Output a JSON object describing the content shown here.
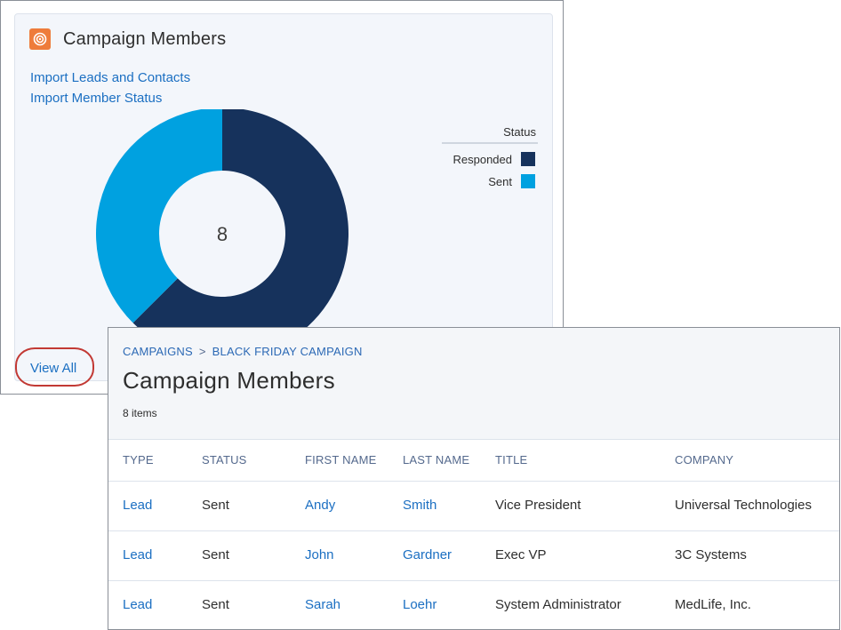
{
  "card": {
    "title": "Campaign Members",
    "icon": "target-icon",
    "links": [
      "Import Leads and Contacts",
      "Import Member Status"
    ],
    "view_all": "View All"
  },
  "chart_data": {
    "type": "pie",
    "center_label": "8",
    "legend_title": "Status",
    "legend_position": "right",
    "series": [
      {
        "name": "Responded",
        "value": 5,
        "color": "#16325c"
      },
      {
        "name": "Sent",
        "value": 3,
        "color": "#00a1e0"
      }
    ]
  },
  "panel": {
    "breadcrumb": [
      "CAMPAIGNS",
      "BLACK FRIDAY CAMPAIGN"
    ],
    "breadcrumb_sep": ">",
    "title": "Campaign Members",
    "count": "8 items",
    "columns": [
      "TYPE",
      "STATUS",
      "FIRST NAME",
      "LAST NAME",
      "TITLE",
      "COMPANY"
    ],
    "rows": [
      [
        "Lead",
        "Sent",
        "Andy",
        "Smith",
        "Vice President",
        "Universal Technologies"
      ],
      [
        "Lead",
        "Sent",
        "John",
        "Gardner",
        "Exec VP",
        "3C Systems"
      ],
      [
        "Lead",
        "Sent",
        "Sarah",
        "Loehr",
        "System Administrator",
        "MedLife, Inc."
      ]
    ]
  }
}
